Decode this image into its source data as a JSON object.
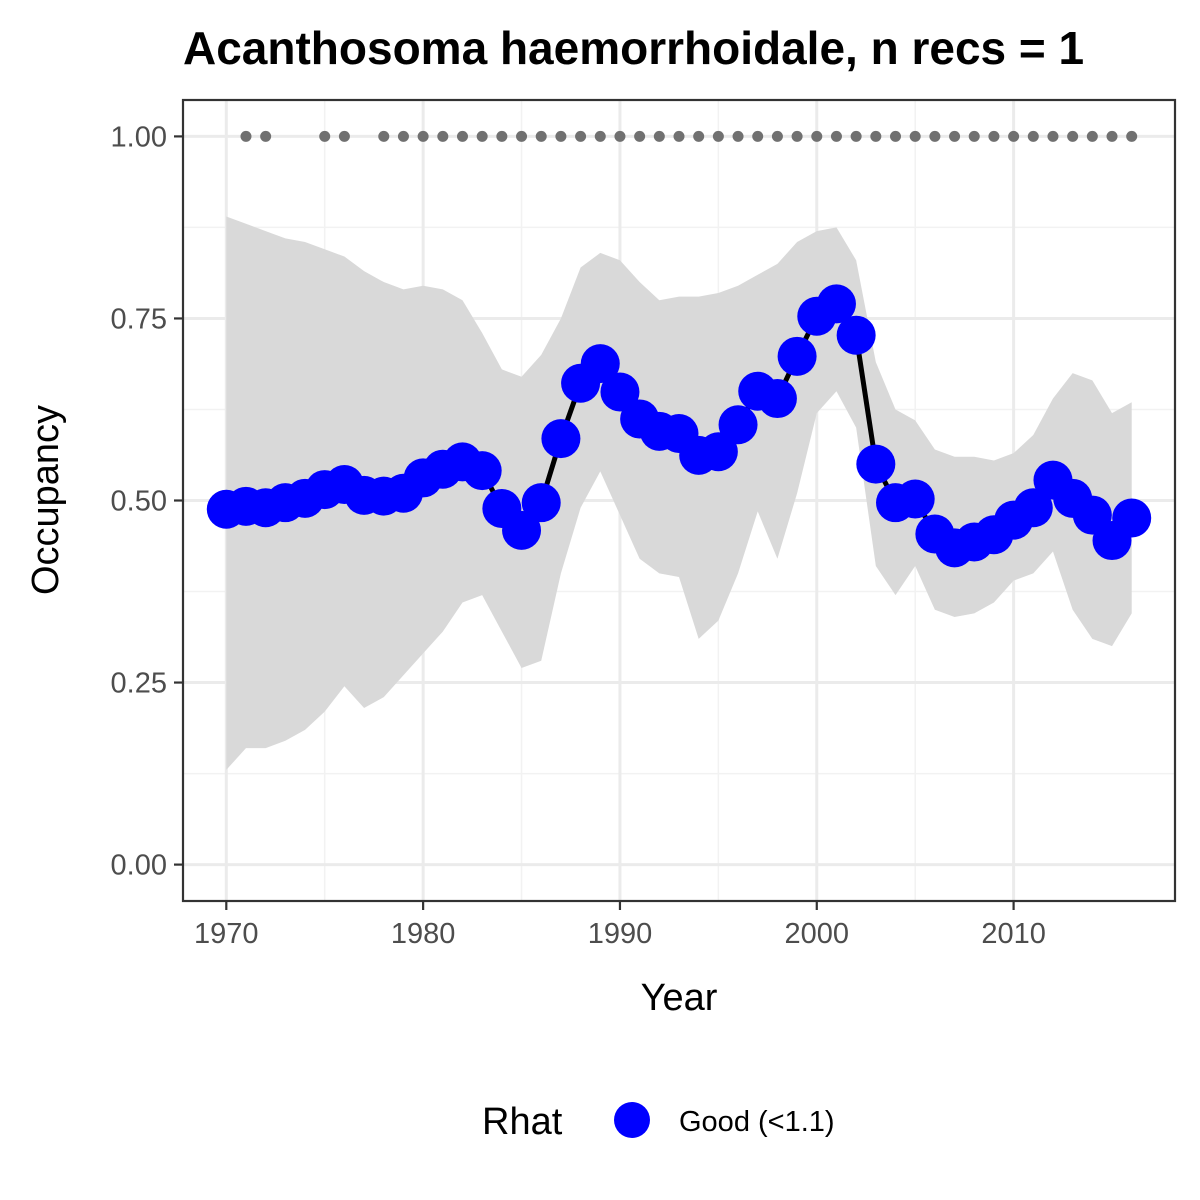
{
  "chart_data": {
    "type": "line",
    "title": "Acanthosoma haemorrhoidale, n recs = 1",
    "xlabel": "Year",
    "ylabel": "Occupancy",
    "xlim": [
      1967.8,
      2018.2
    ],
    "ylim": [
      -0.05,
      1.05
    ],
    "xticks": [
      1970,
      1980,
      1990,
      2000,
      2010
    ],
    "xtick_labels": [
      "1970",
      "1980",
      "1990",
      "2000",
      "2010"
    ],
    "yticks": [
      0,
      0.25,
      0.5,
      0.75,
      1.0
    ],
    "ytick_labels": [
      "0.00",
      "0.25",
      "0.50",
      "0.75",
      "1.00"
    ],
    "grid": true,
    "legend": {
      "title": "Rhat",
      "position": "bottom",
      "entries": [
        {
          "label": "Good (<1.1)",
          "color": "#0000ff"
        }
      ]
    },
    "colors": {
      "points": "#0000ff",
      "line": "#000000",
      "ribbon": "#d9d9d9",
      "record_dots": "#707070"
    },
    "series": [
      {
        "name": "Good (<1.1)",
        "x": [
          1970,
          1971,
          1972,
          1973,
          1974,
          1975,
          1976,
          1977,
          1978,
          1979,
          1980,
          1981,
          1982,
          1983,
          1984,
          1985,
          1986,
          1987,
          1988,
          1989,
          1990,
          1991,
          1992,
          1993,
          1994,
          1995,
          1996,
          1997,
          1998,
          1999,
          2000,
          2001,
          2002,
          2003,
          2004,
          2005,
          2006,
          2007,
          2008,
          2009,
          2010,
          2011,
          2012,
          2013,
          2014,
          2015,
          2016
        ],
        "y": [
          0.488,
          0.492,
          0.49,
          0.497,
          0.503,
          0.515,
          0.522,
          0.507,
          0.506,
          0.51,
          0.531,
          0.543,
          0.553,
          0.541,
          0.489,
          0.459,
          0.497,
          0.585,
          0.661,
          0.688,
          0.649,
          0.612,
          0.595,
          0.592,
          0.562,
          0.567,
          0.604,
          0.65,
          0.64,
          0.698,
          0.753,
          0.77,
          0.727,
          0.55,
          0.497,
          0.502,
          0.454,
          0.435,
          0.443,
          0.453,
          0.473,
          0.49,
          0.528,
          0.503,
          0.48,
          0.445,
          0.476
        ]
      }
    ],
    "ribbon": {
      "x": [
        1970,
        1971,
        1972,
        1973,
        1974,
        1975,
        1976,
        1977,
        1978,
        1979,
        1980,
        1981,
        1982,
        1983,
        1984,
        1985,
        1986,
        1987,
        1988,
        1989,
        1990,
        1991,
        1992,
        1993,
        1994,
        1995,
        1996,
        1997,
        1998,
        1999,
        2000,
        2001,
        2002,
        2003,
        2004,
        2005,
        2006,
        2007,
        2008,
        2009,
        2010,
        2011,
        2012,
        2013,
        2014,
        2015,
        2016
      ],
      "lower": [
        0.13,
        0.16,
        0.16,
        0.17,
        0.185,
        0.21,
        0.245,
        0.215,
        0.23,
        0.26,
        0.29,
        0.32,
        0.36,
        0.37,
        0.32,
        0.27,
        0.28,
        0.4,
        0.49,
        0.54,
        0.48,
        0.42,
        0.4,
        0.395,
        0.31,
        0.335,
        0.4,
        0.485,
        0.42,
        0.51,
        0.62,
        0.65,
        0.6,
        0.41,
        0.37,
        0.41,
        0.35,
        0.34,
        0.345,
        0.36,
        0.39,
        0.4,
        0.43,
        0.35,
        0.31,
        0.3,
        0.345
      ],
      "upper": [
        0.89,
        0.88,
        0.87,
        0.86,
        0.855,
        0.845,
        0.835,
        0.815,
        0.8,
        0.79,
        0.795,
        0.79,
        0.775,
        0.73,
        0.68,
        0.67,
        0.7,
        0.75,
        0.82,
        0.84,
        0.83,
        0.8,
        0.775,
        0.78,
        0.78,
        0.785,
        0.795,
        0.81,
        0.825,
        0.855,
        0.87,
        0.875,
        0.83,
        0.69,
        0.625,
        0.61,
        0.57,
        0.56,
        0.56,
        0.555,
        0.565,
        0.59,
        0.64,
        0.675,
        0.665,
        0.62,
        0.635
      ]
    },
    "records": {
      "y": 1.0,
      "x": [
        1971,
        1972,
        1975,
        1976,
        1978,
        1979,
        1980,
        1981,
        1982,
        1983,
        1984,
        1985,
        1986,
        1987,
        1988,
        1989,
        1990,
        1991,
        1992,
        1993,
        1994,
        1995,
        1996,
        1997,
        1998,
        1999,
        2000,
        2001,
        2002,
        2003,
        2004,
        2005,
        2006,
        2007,
        2008,
        2009,
        2010,
        2011,
        2012,
        2013,
        2014,
        2015,
        2016
      ]
    }
  }
}
